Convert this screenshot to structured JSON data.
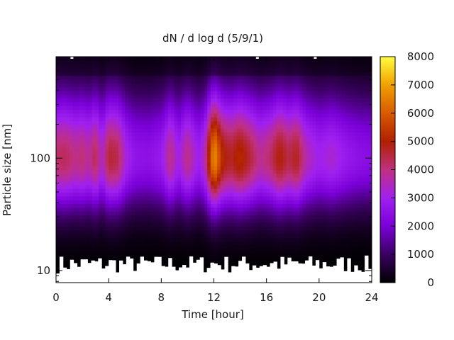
{
  "chart_data": {
    "type": "heatmap",
    "title": "dN / d log d (5/9/1)",
    "xlabel": "Time [hour]",
    "ylabel": "Particle size [nm]",
    "x_ticks": [
      "0",
      "4",
      "8",
      "12",
      "16",
      "20",
      "24"
    ],
    "y_ticks": [
      "10",
      "100"
    ],
    "xlim": [
      0,
      24
    ],
    "y_scale": "log",
    "ylim_nm": [
      7.8,
      800
    ],
    "colorbar": {
      "ticks": [
        "0",
        "1000",
        "2000",
        "3000",
        "4000",
        "5000",
        "6000",
        "7000",
        "8000"
      ],
      "range": [
        0,
        8000
      ],
      "colormap": [
        "#000000",
        "#3a0060",
        "#7a00d8",
        "#a020f0",
        "#c03080",
        "#b02000",
        "#d85a00",
        "#f0a000",
        "#ffff40"
      ]
    },
    "size_mode": {
      "peak_diameter_nm": 100,
      "temporal_profile": [
        {
          "hour": 0.0,
          "peak": 4200
        },
        {
          "hour": 0.7,
          "peak": 4300
        },
        {
          "hour": 1.5,
          "peak": 3900
        },
        {
          "hour": 2.0,
          "peak": 4100
        },
        {
          "hour": 2.5,
          "peak": 3700
        },
        {
          "hour": 3.0,
          "peak": 4400
        },
        {
          "hour": 3.5,
          "peak": 3300
        },
        {
          "hour": 4.0,
          "peak": 4600
        },
        {
          "hour": 4.7,
          "peak": 4400
        },
        {
          "hour": 5.3,
          "peak": 3200
        },
        {
          "hour": 6.0,
          "peak": 2600
        },
        {
          "hour": 7.0,
          "peak": 2500
        },
        {
          "hour": 8.0,
          "peak": 2800
        },
        {
          "hour": 8.7,
          "peak": 4000
        },
        {
          "hour": 9.3,
          "peak": 3000
        },
        {
          "hour": 10.0,
          "peak": 4000
        },
        {
          "hour": 10.8,
          "peak": 2900
        },
        {
          "hour": 11.3,
          "peak": 3500
        },
        {
          "hour": 12.0,
          "peak": 6900
        },
        {
          "hour": 12.7,
          "peak": 5000
        },
        {
          "hour": 13.3,
          "peak": 4700
        },
        {
          "hour": 14.0,
          "peak": 5200
        },
        {
          "hour": 14.7,
          "peak": 4600
        },
        {
          "hour": 15.5,
          "peak": 3800
        },
        {
          "hour": 16.3,
          "peak": 4200
        },
        {
          "hour": 17.0,
          "peak": 5000
        },
        {
          "hour": 17.7,
          "peak": 4400
        },
        {
          "hour": 18.3,
          "peak": 4800
        },
        {
          "hour": 19.0,
          "peak": 3600
        },
        {
          "hour": 20.0,
          "peak": 3000
        },
        {
          "hour": 21.0,
          "peak": 3300
        },
        {
          "hour": 22.0,
          "peak": 2800
        },
        {
          "hour": 23.0,
          "peak": 2500
        },
        {
          "hour": 24.0,
          "peak": 2400
        }
      ]
    },
    "grid": false,
    "legend": "colorbar on right"
  }
}
